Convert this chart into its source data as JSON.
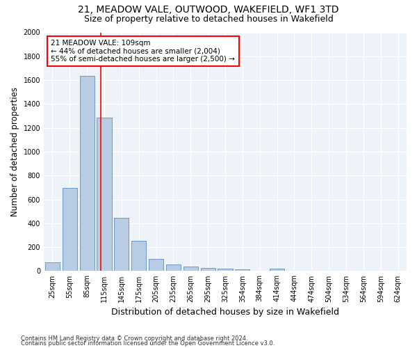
{
  "title1": "21, MEADOW VALE, OUTWOOD, WAKEFIELD, WF1 3TD",
  "title2": "Size of property relative to detached houses in Wakefield",
  "xlabel": "Distribution of detached houses by size in Wakefield",
  "ylabel": "Number of detached properties",
  "categories": [
    "25sqm",
    "55sqm",
    "85sqm",
    "115sqm",
    "145sqm",
    "175sqm",
    "205sqm",
    "235sqm",
    "265sqm",
    "295sqm",
    "325sqm",
    "354sqm",
    "384sqm",
    "414sqm",
    "444sqm",
    "474sqm",
    "504sqm",
    "534sqm",
    "564sqm",
    "594sqm",
    "624sqm"
  ],
  "values": [
    70,
    695,
    1635,
    1285,
    445,
    255,
    100,
    55,
    35,
    25,
    20,
    15,
    0,
    20,
    0,
    0,
    0,
    0,
    0,
    0,
    0
  ],
  "bar_color": "#b8cce4",
  "bar_edge_color": "#5b8dc8",
  "vline_color": "red",
  "annotation_line1": "21 MEADOW VALE: 109sqm",
  "annotation_line2": "← 44% of detached houses are smaller (2,004)",
  "annotation_line3": "55% of semi-detached houses are larger (2,500) →",
  "ylim": [
    0,
    2000
  ],
  "yticks": [
    0,
    200,
    400,
    600,
    800,
    1000,
    1200,
    1400,
    1600,
    1800,
    2000
  ],
  "footnote1": "Contains HM Land Registry data © Crown copyright and database right 2024.",
  "footnote2": "Contains public sector information licensed under the Open Government Licence v3.0.",
  "background_color": "#eef2f9",
  "grid_color": "white",
  "title1_fontsize": 10,
  "title2_fontsize": 9,
  "tick_fontsize": 7,
  "ylabel_fontsize": 8.5,
  "xlabel_fontsize": 9,
  "annotation_fontsize": 7.5,
  "footnote_fontsize": 6
}
